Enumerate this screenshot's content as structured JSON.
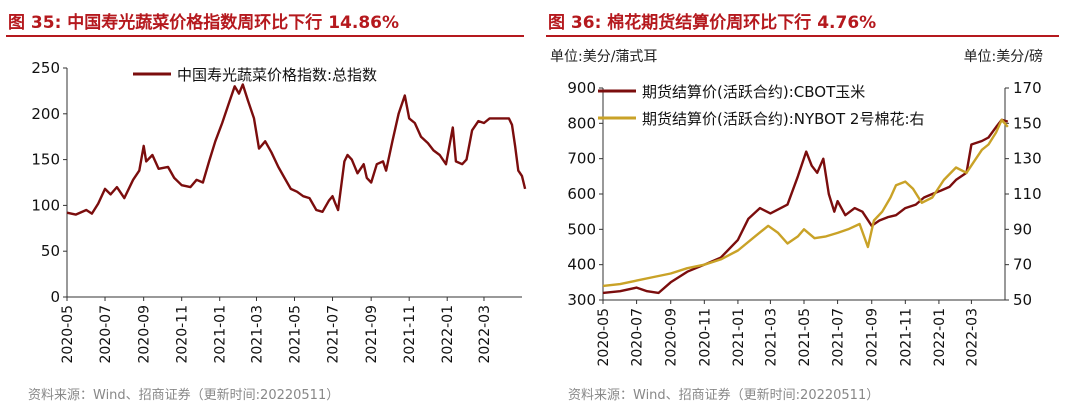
{
  "chart_data": [
    {
      "type": "line",
      "title": "图 35:  中国寿光蔬菜价格指数周环比下行 14.86%",
      "source": "资料来源：Wind、招商证券（更新时间:20220511）",
      "ylim": [
        0,
        250
      ],
      "yticks": [
        0,
        50,
        100,
        150,
        200,
        250
      ],
      "xlim": [
        "2020-05",
        "2022-05"
      ],
      "xticks": [
        "2020-05",
        "2020-07",
        "2020-09",
        "2020-11",
        "2021-01",
        "2021-03",
        "2021-05",
        "2021-07",
        "2021-09",
        "2021-11",
        "2022-01",
        "2022-03"
      ],
      "legend_position": "top",
      "series": [
        {
          "name": "中国寿光蔬菜价格指数:总指数",
          "color": "#7b0d0d",
          "points": [
            [
              "2020-05-01",
              92
            ],
            [
              "2020-05-15",
              90
            ],
            [
              "2020-06-01",
              95
            ],
            [
              "2020-06-10",
              91
            ],
            [
              "2020-06-20",
              102
            ],
            [
              "2020-07-01",
              118
            ],
            [
              "2020-07-10",
              112
            ],
            [
              "2020-07-20",
              120
            ],
            [
              "2020-08-01",
              108
            ],
            [
              "2020-08-15",
              128
            ],
            [
              "2020-08-25",
              138
            ],
            [
              "2020-09-01",
              165
            ],
            [
              "2020-09-05",
              148
            ],
            [
              "2020-09-15",
              155
            ],
            [
              "2020-09-25",
              140
            ],
            [
              "2020-10-10",
              142
            ],
            [
              "2020-10-20",
              130
            ],
            [
              "2020-11-01",
              122
            ],
            [
              "2020-11-15",
              120
            ],
            [
              "2020-11-25",
              128
            ],
            [
              "2020-12-05",
              125
            ],
            [
              "2020-12-15",
              148
            ],
            [
              "2020-12-25",
              170
            ],
            [
              "2021-01-05",
              190
            ],
            [
              "2021-01-15",
              210
            ],
            [
              "2021-01-25",
              230
            ],
            [
              "2021-02-01",
              222
            ],
            [
              "2021-02-07",
              232
            ],
            [
              "2021-02-15",
              215
            ],
            [
              "2021-02-25",
              195
            ],
            [
              "2021-03-05",
              162
            ],
            [
              "2021-03-15",
              170
            ],
            [
              "2021-03-25",
              158
            ],
            [
              "2021-04-05",
              142
            ],
            [
              "2021-04-15",
              130
            ],
            [
              "2021-04-25",
              118
            ],
            [
              "2021-05-05",
              115
            ],
            [
              "2021-05-15",
              110
            ],
            [
              "2021-05-25",
              108
            ],
            [
              "2021-06-05",
              95
            ],
            [
              "2021-06-15",
              93
            ],
            [
              "2021-06-25",
              105
            ],
            [
              "2021-07-01",
              110
            ],
            [
              "2021-07-05",
              103
            ],
            [
              "2021-07-10",
              95
            ],
            [
              "2021-07-20",
              148
            ],
            [
              "2021-07-25",
              155
            ],
            [
              "2021-08-01",
              150
            ],
            [
              "2021-08-10",
              135
            ],
            [
              "2021-08-20",
              145
            ],
            [
              "2021-08-25",
              130
            ],
            [
              "2021-09-01",
              125
            ],
            [
              "2021-09-10",
              145
            ],
            [
              "2021-09-20",
              148
            ],
            [
              "2021-09-25",
              138
            ],
            [
              "2021-10-05",
              170
            ],
            [
              "2021-10-15",
              200
            ],
            [
              "2021-10-25",
              220
            ],
            [
              "2021-11-01",
              195
            ],
            [
              "2021-11-10",
              190
            ],
            [
              "2021-11-20",
              175
            ],
            [
              "2021-12-01",
              168
            ],
            [
              "2021-12-10",
              160
            ],
            [
              "2021-12-20",
              155
            ],
            [
              "2021-12-30",
              145
            ],
            [
              "2022-01-10",
              185
            ],
            [
              "2022-01-15",
              148
            ],
            [
              "2022-01-25",
              145
            ],
            [
              "2022-02-01",
              150
            ],
            [
              "2022-02-10",
              182
            ],
            [
              "2022-02-20",
              192
            ],
            [
              "2022-03-01",
              190
            ],
            [
              "2022-03-10",
              195
            ],
            [
              "2022-03-20",
              195
            ],
            [
              "2022-04-01",
              195
            ],
            [
              "2022-04-10",
              195
            ],
            [
              "2022-04-15",
              188
            ],
            [
              "2022-04-20",
              165
            ],
            [
              "2022-04-25",
              138
            ],
            [
              "2022-05-01",
              132
            ],
            [
              "2022-05-06",
              118
            ]
          ]
        }
      ]
    },
    {
      "type": "line",
      "title": "图 36:  棉花期货结算价周环比下行 4.76%",
      "source": "资料来源：Wind、招商证券（更新时间:20220511）",
      "ylabel": "单位:美分/蒲式耳",
      "ylabel_right": "单位:美分/磅",
      "ylim": [
        300,
        900
      ],
      "yticks": [
        300,
        400,
        500,
        600,
        700,
        800,
        900
      ],
      "ylim_right": [
        50,
        170
      ],
      "yticks_right": [
        50,
        70,
        90,
        110,
        130,
        150,
        170
      ],
      "xlim": [
        "2020-05",
        "2022-05"
      ],
      "xticks": [
        "2020-05",
        "2020-07",
        "2020-09",
        "2020-11",
        "2021-01",
        "2021-03",
        "2021-05",
        "2021-07",
        "2021-09",
        "2021-11",
        "2022-01",
        "2022-03"
      ],
      "legend_position": "top",
      "series": [
        {
          "name": "期货结算价(活跃合约):CBOT玉米",
          "axis": "left",
          "color": "#7b0d0d",
          "points": [
            [
              "2020-05-01",
              320
            ],
            [
              "2020-06-01",
              325
            ],
            [
              "2020-07-01",
              335
            ],
            [
              "2020-07-20",
              325
            ],
            [
              "2020-08-10",
              320
            ],
            [
              "2020-09-01",
              350
            ],
            [
              "2020-10-01",
              380
            ],
            [
              "2020-11-01",
              400
            ],
            [
              "2020-12-01",
              420
            ],
            [
              "2021-01-01",
              470
            ],
            [
              "2021-01-20",
              530
            ],
            [
              "2021-02-10",
              560
            ],
            [
              "2021-03-01",
              545
            ],
            [
              "2021-04-01",
              570
            ],
            [
              "2021-04-20",
              650
            ],
            [
              "2021-05-05",
              720
            ],
            [
              "2021-05-15",
              680
            ],
            [
              "2021-05-25",
              660
            ],
            [
              "2021-06-05",
              700
            ],
            [
              "2021-06-15",
              600
            ],
            [
              "2021-06-25",
              550
            ],
            [
              "2021-07-01",
              580
            ],
            [
              "2021-07-15",
              540
            ],
            [
              "2021-08-01",
              560
            ],
            [
              "2021-08-15",
              550
            ],
            [
              "2021-09-01",
              510
            ],
            [
              "2021-09-15",
              525
            ],
            [
              "2021-10-01",
              535
            ],
            [
              "2021-10-15",
              540
            ],
            [
              "2021-11-01",
              560
            ],
            [
              "2021-11-20",
              570
            ],
            [
              "2021-12-05",
              590
            ],
            [
              "2021-12-20",
              600
            ],
            [
              "2022-01-05",
              610
            ],
            [
              "2022-01-20",
              620
            ],
            [
              "2022-02-01",
              640
            ],
            [
              "2022-02-20",
              660
            ],
            [
              "2022-03-01",
              740
            ],
            [
              "2022-03-20",
              750
            ],
            [
              "2022-04-01",
              760
            ],
            [
              "2022-04-15",
              790
            ],
            [
              "2022-04-25",
              810
            ],
            [
              "2022-05-06",
              805
            ]
          ]
        },
        {
          "name": "期货结算价(活跃合约):NYBOT 2号棉花:右",
          "axis": "right",
          "color": "#c9a227",
          "points": [
            [
              "2020-05-01",
              58
            ],
            [
              "2020-06-01",
              59
            ],
            [
              "2020-07-01",
              61
            ],
            [
              "2020-08-01",
              63
            ],
            [
              "2020-09-01",
              65
            ],
            [
              "2020-10-01",
              68
            ],
            [
              "2020-11-01",
              70
            ],
            [
              "2020-12-01",
              73
            ],
            [
              "2021-01-01",
              78
            ],
            [
              "2021-02-01",
              86
            ],
            [
              "2021-02-25",
              92
            ],
            [
              "2021-03-15",
              88
            ],
            [
              "2021-04-01",
              82
            ],
            [
              "2021-04-20",
              86
            ],
            [
              "2021-05-01",
              90
            ],
            [
              "2021-05-20",
              85
            ],
            [
              "2021-06-10",
              86
            ],
            [
              "2021-07-01",
              88
            ],
            [
              "2021-07-20",
              90
            ],
            [
              "2021-08-10",
              93
            ],
            [
              "2021-08-25",
              80
            ],
            [
              "2021-09-05",
              95
            ],
            [
              "2021-09-20",
              100
            ],
            [
              "2021-10-05",
              108
            ],
            [
              "2021-10-15",
              115
            ],
            [
              "2021-11-01",
              117
            ],
            [
              "2021-11-15",
              113
            ],
            [
              "2021-12-01",
              105
            ],
            [
              "2021-12-20",
              108
            ],
            [
              "2022-01-10",
              118
            ],
            [
              "2022-02-01",
              125
            ],
            [
              "2022-02-20",
              122
            ],
            [
              "2022-03-05",
              128
            ],
            [
              "2022-03-20",
              135
            ],
            [
              "2022-04-01",
              138
            ],
            [
              "2022-04-15",
              145
            ],
            [
              "2022-04-25",
              152
            ],
            [
              "2022-05-06",
              148
            ]
          ]
        }
      ]
    }
  ]
}
